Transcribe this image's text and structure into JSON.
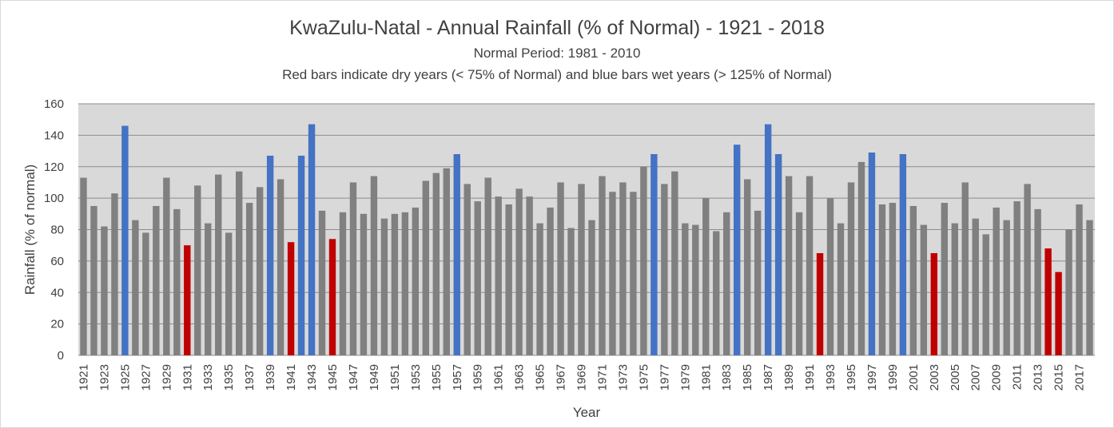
{
  "chart_data": {
    "type": "bar",
    "title": "KwaZulu-Natal - Annual Rainfall (% of Normal) - 1921 - 2018",
    "subtitle": "Normal Period: 1981 - 2010",
    "subtitle2": "Red bars indicate dry years (< 75% of Normal) and blue bars wet years (> 125% of Normal)",
    "xlabel": "Year",
    "ylabel": "Rainfall (% of normal)",
    "ylim": [
      0,
      160
    ],
    "yticks": [
      0,
      20,
      40,
      60,
      80,
      100,
      120,
      140,
      160
    ],
    "grid": true,
    "plot_background": "#d9d9d9",
    "colors": {
      "normal": "#808080",
      "dry": "#c00000",
      "wet": "#4472c4"
    },
    "categories": [
      1921,
      1922,
      1923,
      1924,
      1925,
      1926,
      1927,
      1928,
      1929,
      1930,
      1931,
      1932,
      1933,
      1934,
      1935,
      1936,
      1937,
      1938,
      1939,
      1940,
      1941,
      1942,
      1943,
      1944,
      1945,
      1946,
      1947,
      1948,
      1949,
      1950,
      1951,
      1952,
      1953,
      1954,
      1955,
      1956,
      1957,
      1958,
      1959,
      1960,
      1961,
      1962,
      1963,
      1964,
      1965,
      1966,
      1967,
      1968,
      1969,
      1970,
      1971,
      1972,
      1973,
      1974,
      1975,
      1976,
      1977,
      1978,
      1979,
      1980,
      1981,
      1982,
      1983,
      1984,
      1985,
      1986,
      1987,
      1988,
      1989,
      1990,
      1991,
      1992,
      1993,
      1994,
      1995,
      1996,
      1997,
      1998,
      1999,
      2000,
      2001,
      2002,
      2003,
      2004,
      2005,
      2006,
      2007,
      2008,
      2009,
      2010,
      2011,
      2012,
      2013,
      2014,
      2015,
      2016,
      2017,
      2018
    ],
    "tick_labels": [
      "1921",
      "1923",
      "1925",
      "1927",
      "1929",
      "1931",
      "1933",
      "1935",
      "1937",
      "1939",
      "1941",
      "1943",
      "1945",
      "1947",
      "1949",
      "1951",
      "1953",
      "1955",
      "1957",
      "1959",
      "1961",
      "1963",
      "1965",
      "1967",
      "1969",
      "1971",
      "1973",
      "1975",
      "1977",
      "1979",
      "1981",
      "1983",
      "1985",
      "1987",
      "1989",
      "1991",
      "1993",
      "1995",
      "1997",
      "1999",
      "2001",
      "2003",
      "2005",
      "2007",
      "2009",
      "2011",
      "2013",
      "2015",
      "2017"
    ],
    "values": [
      113,
      95,
      82,
      103,
      146,
      86,
      78,
      95,
      113,
      93,
      70,
      108,
      84,
      115,
      78,
      117,
      97,
      107,
      127,
      112,
      72,
      127,
      147,
      92,
      74,
      91,
      110,
      90,
      114,
      87,
      90,
      91,
      94,
      111,
      116,
      119,
      128,
      109,
      98,
      113,
      101,
      96,
      106,
      101,
      84,
      94,
      110,
      81,
      109,
      86,
      114,
      104,
      110,
      104,
      120,
      128,
      109,
      117,
      84,
      83,
      100,
      79,
      91,
      134,
      112,
      92,
      147,
      128,
      114,
      91,
      114,
      65,
      100,
      84,
      110,
      123,
      129,
      96,
      97,
      128,
      95,
      83,
      65,
      97,
      84,
      110,
      87,
      77,
      94,
      86,
      98,
      109,
      93,
      68,
      53,
      80,
      96,
      86
    ]
  }
}
